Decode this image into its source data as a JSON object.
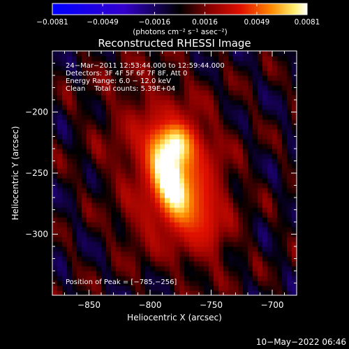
{
  "chart_data": {
    "type": "heatmap",
    "title": "Reconstructed RHESSI Image",
    "xlabel": "Heliocentric X (arcsec)",
    "ylabel": "Heliocentric Y (arcsec)",
    "xlim": [
      -880,
      -680
    ],
    "ylim": [
      -350,
      -150
    ],
    "x_ticks": [
      -850,
      -800,
      -750,
      -700
    ],
    "y_ticks": [
      -300,
      -250,
      -200
    ],
    "x_tick_labels": [
      "−850",
      "−800",
      "−750",
      "−700"
    ],
    "y_tick_labels": [
      "−300",
      "−250",
      "−200"
    ],
    "colorbar": {
      "min": -0.0081,
      "max": 0.0081,
      "ticks": [
        -0.0081,
        -0.0049,
        -0.0016,
        0.0016,
        0.0049,
        0.0081
      ],
      "tick_labels": [
        "−0.0081",
        "−0.0049",
        "−0.0016",
        "0.0016",
        "0.0049",
        "0.0081"
      ],
      "units_label": "(photons cm⁻² s⁻¹ asec⁻²)"
    },
    "annotations": [
      "24−Mar−2011 12:53:44.000 to 12:59:44.000",
      "Detectors: 3F 4F 5F 6F 7F 8F, Att 0",
      "Energy Range: 6.0 − 12.0 keV",
      "Clean    Total counts: 5.39E+04"
    ],
    "peak_label": "Position of Peak = [−785,−256]",
    "peak_position": [
      -785,
      -256
    ],
    "peak_value": 0.0081,
    "source_extent": {
      "x": [
        -810,
        -755
      ],
      "y": [
        -310,
        -200
      ]
    },
    "grid": false
  },
  "footer": {
    "timestamp": "10−May−2022 06:46"
  }
}
